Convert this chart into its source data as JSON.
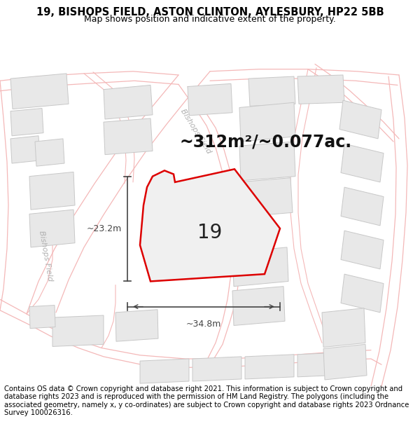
{
  "title_line1": "19, BISHOPS FIELD, ASTON CLINTON, AYLESBURY, HP22 5BB",
  "title_line2": "Map shows position and indicative extent of the property.",
  "area_text": "~312m²/~0.077ac.",
  "label_19": "19",
  "dim_width": "~34.8m",
  "dim_height": "~23.2m",
  "footer_text": "Contains OS data © Crown copyright and database right 2021. This information is subject to Crown copyright and database rights 2023 and is reproduced with the permission of HM Land Registry. The polygons (including the associated geometry, namely x, y co-ordinates) are subject to Crown copyright and database rights 2023 Ordnance Survey 100026316.",
  "bg_color": "#ffffff",
  "road_line_color": "#f4b8b8",
  "building_fill": "#e8e8e8",
  "building_stroke": "#c8c8c8",
  "plot_stroke": "#dd0000",
  "plot_fill": "#f0f0f0",
  "dim_color": "#444444",
  "road_label_color": "#b0b0b0",
  "title_fontsize": 10.5,
  "subtitle_fontsize": 9,
  "area_fontsize": 17,
  "label_fontsize": 20,
  "footer_fontsize": 7.2,
  "dim_fontsize": 9,
  "road_label_fontsize": 8
}
